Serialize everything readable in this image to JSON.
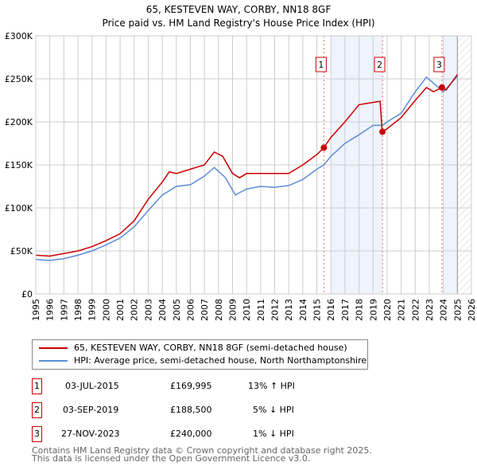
{
  "chart_data": {
    "type": "line",
    "title": "65, KESTEVEN WAY, CORBY, NN18 8GF",
    "subtitle": "Price paid vs. HM Land Registry's House Price Index (HPI)",
    "xlim": [
      1995,
      2026
    ],
    "ylim": [
      0,
      300000
    ],
    "x_ticks": [
      "1995",
      "1996",
      "1997",
      "1998",
      "1999",
      "2000",
      "2001",
      "2002",
      "2003",
      "2004",
      "2005",
      "2006",
      "2007",
      "2008",
      "2009",
      "2010",
      "2011",
      "2012",
      "2013",
      "2014",
      "2015",
      "2016",
      "2017",
      "2018",
      "2019",
      "2020",
      "2021",
      "2022",
      "2023",
      "2024",
      "2025",
      "2026"
    ],
    "y_ticks": [
      {
        "v": 0,
        "label": "£0"
      },
      {
        "v": 50000,
        "label": "£50K"
      },
      {
        "v": 100000,
        "label": "£100K"
      },
      {
        "v": 150000,
        "label": "£150K"
      },
      {
        "v": 200000,
        "label": "£200K"
      },
      {
        "v": 250000,
        "label": "£250K"
      },
      {
        "v": 300000,
        "label": "£300K"
      }
    ],
    "grid": true,
    "series": [
      {
        "name": "65, KESTEVEN WAY, CORBY, NN18 8GF (semi-detached house)",
        "color": "#cc0000",
        "x": [
          1995,
          1996,
          1997,
          1998,
          1999,
          2000,
          2001,
          2002,
          2003,
          2004,
          2004.5,
          2005,
          2006,
          2007,
          2007.7,
          2008.3,
          2009,
          2009.5,
          2010,
          2011,
          2012,
          2013,
          2014,
          2015,
          2015.5,
          2016,
          2017,
          2018,
          2019.5,
          2019.65,
          2020,
          2021,
          2022,
          2022.8,
          2023.3,
          2023.9,
          2024.2,
          2025
        ],
        "y": [
          45000,
          44000,
          47000,
          50000,
          55000,
          62000,
          70000,
          85000,
          110000,
          130000,
          142000,
          140000,
          145000,
          150000,
          165000,
          160000,
          140000,
          135000,
          140000,
          140000,
          140000,
          140000,
          150000,
          162000,
          169995,
          182000,
          200000,
          220000,
          224000,
          188500,
          192000,
          205000,
          225000,
          240000,
          235000,
          240000,
          237000,
          255000
        ]
      },
      {
        "name": "HPI: Average price, semi-detached house, North Northamptonshire",
        "color": "#5b8ed6",
        "x": [
          1995,
          1996,
          1997,
          1998,
          1999,
          2000,
          2001,
          2002,
          2003,
          2004,
          2005,
          2006,
          2007,
          2007.7,
          2008.5,
          2009.2,
          2010,
          2011,
          2012,
          2013,
          2014,
          2015,
          2015.5,
          2016,
          2017,
          2018,
          2019,
          2019.67,
          2020,
          2021,
          2022,
          2022.8,
          2023.3,
          2024,
          2025
        ],
        "y": [
          40000,
          39000,
          41000,
          45000,
          50000,
          57000,
          65000,
          78000,
          97000,
          115000,
          125000,
          127000,
          137000,
          147000,
          135000,
          115000,
          122000,
          125000,
          124000,
          126000,
          133000,
          145000,
          150000,
          160000,
          175000,
          185000,
          196000,
          196000,
          200000,
          210000,
          235000,
          252000,
          245000,
          235000,
          253000
        ]
      }
    ],
    "annotations": [
      {
        "label": "1",
        "x": 2015.5,
        "y": 169995
      },
      {
        "label": "2",
        "x": 2019.67,
        "y": 188500
      },
      {
        "label": "3",
        "x": 2023.9,
        "y": 240000
      }
    ],
    "shaded": [
      [
        2016,
        2019.67
      ],
      [
        2024,
        2025
      ]
    ],
    "forecast_hatch_from": 2025,
    "legend": "below"
  },
  "transactions": [
    {
      "num": "1",
      "date": "03-JUL-2015",
      "price": "£169,995",
      "hpi": "13% ↑ HPI"
    },
    {
      "num": "2",
      "date": "03-SEP-2019",
      "price": "£188,500",
      "hpi": "5% ↓ HPI"
    },
    {
      "num": "3",
      "date": "27-NOV-2023",
      "price": "£240,000",
      "hpi": "1% ↓ HPI"
    }
  ],
  "footer": {
    "line1": "Contains HM Land Registry data © Crown copyright and database right 2025.",
    "line2": "This data is licensed under the Open Government Licence v3.0."
  }
}
